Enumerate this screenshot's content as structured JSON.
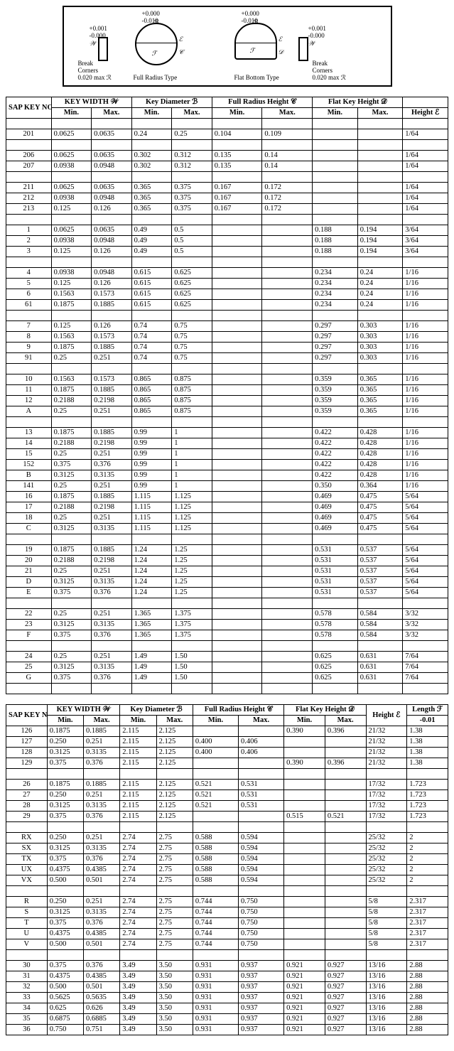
{
  "diagram": {
    "tol_w": "+0.001\n-0.000",
    "tol_b": "+0.000\n-0.010",
    "lbl_w": "𝒲",
    "lbl_b": "ℬ",
    "lbl_e": "ℰ",
    "lbl_c": "𝒞",
    "lbl_f": "ℱ",
    "lbl_d": "𝒟",
    "break": "Break\nCorners",
    "maxr": "0.020 max ℛ",
    "full_radius": "Full Radius Type",
    "flat_bottom": "Flat Bottom Type"
  },
  "headers1": {
    "sap": "SAP KEY NO.",
    "w": "KEY WIDTH 𝒲",
    "b": "Key Diameter ℬ",
    "c": "Full Radius Height 𝒞",
    "d": "Flat Key Height 𝒟",
    "e": "Height ℰ",
    "min": "Min.",
    "max": "Max."
  },
  "headers2": {
    "sap": "SAP KEY NO.",
    "w": "KEY WIDTH 𝒲",
    "b": "Key Diameter ℬ",
    "c": "Full Radius Height 𝒞",
    "d": "Flat Key Height 𝒟",
    "e": "Height ℰ",
    "f": "Length ℱ\n-0.01",
    "min": "Min.",
    "max": "Max."
  },
  "table1": [
    [],
    [
      "201",
      "0.0625",
      "0.0635",
      "0.24",
      "0.25",
      "0.104",
      "0.109",
      "",
      "",
      "1/64"
    ],
    [],
    [
      "206",
      "0.0625",
      "0.0635",
      "0.302",
      "0.312",
      "0.135",
      "0.14",
      "",
      "",
      "1/64"
    ],
    [
      "207",
      "0.0938",
      "0.0948",
      "0.302",
      "0.312",
      "0.135",
      "0.14",
      "",
      "",
      "1/64"
    ],
    [],
    [
      "211",
      "0.0625",
      "0.0635",
      "0.365",
      "0.375",
      "0.167",
      "0.172",
      "",
      "",
      "1/64"
    ],
    [
      "212",
      "0.0938",
      "0.0948",
      "0.365",
      "0.375",
      "0.167",
      "0.172",
      "",
      "",
      "1/64"
    ],
    [
      "213",
      "0.125",
      "0.126",
      "0.365",
      "0.375",
      "0.167",
      "0.172",
      "",
      "",
      "1/64"
    ],
    [],
    [
      "1",
      "0.0625",
      "0.0635",
      "0.49",
      "0.5",
      "",
      "",
      "0.188",
      "0.194",
      "3/64"
    ],
    [
      "2",
      "0.0938",
      "0.0948",
      "0.49",
      "0.5",
      "",
      "",
      "0.188",
      "0.194",
      "3/64"
    ],
    [
      "3",
      "0.125",
      "0.126",
      "0.49",
      "0.5",
      "",
      "",
      "0.188",
      "0.194",
      "3/64"
    ],
    [],
    [
      "4",
      "0.0938",
      "0.0948",
      "0.615",
      "0.625",
      "",
      "",
      "0.234",
      "0.24",
      "1/16"
    ],
    [
      "5",
      "0.125",
      "0.126",
      "0.615",
      "0.625",
      "",
      "",
      "0.234",
      "0.24",
      "1/16"
    ],
    [
      "6",
      "0.1563",
      "0.1573",
      "0.615",
      "0.625",
      "",
      "",
      "0.234",
      "0.24",
      "1/16"
    ],
    [
      "61",
      "0.1875",
      "0.1885",
      "0.615",
      "0.625",
      "",
      "",
      "0.234",
      "0.24",
      "1/16"
    ],
    [],
    [
      "7",
      "0.125",
      "0.126",
      "0.74",
      "0.75",
      "",
      "",
      "0.297",
      "0.303",
      "1/16"
    ],
    [
      "8",
      "0.1563",
      "0.1573",
      "0.74",
      "0.75",
      "",
      "",
      "0.297",
      "0.303",
      "1/16"
    ],
    [
      "9",
      "0.1875",
      "0.1885",
      "0.74",
      "0.75",
      "",
      "",
      "0.297",
      "0.303",
      "1/16"
    ],
    [
      "91",
      "0.25",
      "0.251",
      "0.74",
      "0.75",
      "",
      "",
      "0.297",
      "0.303",
      "1/16"
    ],
    [],
    [
      "10",
      "0.1563",
      "0.1573",
      "0.865",
      "0.875",
      "",
      "",
      "0.359",
      "0.365",
      "1/16"
    ],
    [
      "11",
      "0.1875",
      "0.1885",
      "0.865",
      "0.875",
      "",
      "",
      "0.359",
      "0.365",
      "1/16"
    ],
    [
      "12",
      "0.2188",
      "0.2198",
      "0.865",
      "0.875",
      "",
      "",
      "0.359",
      "0.365",
      "1/16"
    ],
    [
      "A",
      "0.25",
      "0.251",
      "0.865",
      "0.875",
      "",
      "",
      "0.359",
      "0.365",
      "1/16"
    ],
    [],
    [
      "13",
      "0.1875",
      "0.1885",
      "0.99",
      "1",
      "",
      "",
      "0.422",
      "0.428",
      "1/16"
    ],
    [
      "14",
      "0.2188",
      "0.2198",
      "0.99",
      "1",
      "",
      "",
      "0.422",
      "0.428",
      "1/16"
    ],
    [
      "15",
      "0.25",
      "0.251",
      "0.99",
      "1",
      "",
      "",
      "0.422",
      "0.428",
      "1/16"
    ],
    [
      "152",
      "0.375",
      "0.376",
      "0.99",
      "1",
      "",
      "",
      "0.422",
      "0.428",
      "1/16"
    ],
    [
      "B",
      "0.3125",
      "0.3135",
      "0.99",
      "1",
      "",
      "",
      "0.422",
      "0.428",
      "1/16"
    ],
    [
      "141",
      "0.25",
      "0.251",
      "0.99",
      "1",
      "",
      "",
      "0.350",
      "0.364",
      "1/16"
    ],
    [
      "16",
      "0.1875",
      "0.1885",
      "1.115",
      "1.125",
      "",
      "",
      "0.469",
      "0.475",
      "5/64"
    ],
    [
      "17",
      "0.2188",
      "0.2198",
      "1.115",
      "1.125",
      "",
      "",
      "0.469",
      "0.475",
      "5/64"
    ],
    [
      "18",
      "0.25",
      "0.251",
      "1.115",
      "1.125",
      "",
      "",
      "0.469",
      "0.475",
      "5/64"
    ],
    [
      "C",
      "0.3125",
      "0.3135",
      "1.115",
      "1.125",
      "",
      "",
      "0.469",
      "0.475",
      "5/64"
    ],
    [],
    [
      "19",
      "0.1875",
      "0.1885",
      "1.24",
      "1.25",
      "",
      "",
      "0.531",
      "0.537",
      "5/64"
    ],
    [
      "20",
      "0.2188",
      "0.2198",
      "1.24",
      "1.25",
      "",
      "",
      "0.531",
      "0.537",
      "5/64"
    ],
    [
      "21",
      "0.25",
      "0.251",
      "1.24",
      "1.25",
      "",
      "",
      "0.531",
      "0.537",
      "5/64"
    ],
    [
      "D",
      "0.3125",
      "0.3135",
      "1.24",
      "1.25",
      "",
      "",
      "0.531",
      "0.537",
      "5/64"
    ],
    [
      "E",
      "0.375",
      "0.376",
      "1.24",
      "1.25",
      "",
      "",
      "0.531",
      "0.537",
      "5/64"
    ],
    [],
    [
      "22",
      "0.25",
      "0.251",
      "1.365",
      "1.375",
      "",
      "",
      "0.578",
      "0.584",
      "3/32"
    ],
    [
      "23",
      "0.3125",
      "0.3135",
      "1.365",
      "1.375",
      "",
      "",
      "0.578",
      "0.584",
      "3/32"
    ],
    [
      "F",
      "0.375",
      "0.376",
      "1.365",
      "1.375",
      "",
      "",
      "0.578",
      "0.584",
      "3/32"
    ],
    [],
    [
      "24",
      "0.25",
      "0.251",
      "1.49",
      "1.50",
      "",
      "",
      "0.625",
      "0.631",
      "7/64"
    ],
    [
      "25",
      "0.3125",
      "0.3135",
      "1.49",
      "1.50",
      "",
      "",
      "0.625",
      "0.631",
      "7/64"
    ],
    [
      "G",
      "0.375",
      "0.376",
      "1.49",
      "1.50",
      "",
      "",
      "0.625",
      "0.631",
      "7/64"
    ],
    []
  ],
  "table2": [
    [
      "126",
      "0.1875",
      "0.1885",
      "2.115",
      "2.125",
      "",
      "",
      "0.390",
      "0.396",
      "21/32",
      "1.38"
    ],
    [
      "127",
      "0.250",
      "0.251",
      "2.115",
      "2.125",
      "0.400",
      "0.406",
      "",
      "",
      "21/32",
      "1.38"
    ],
    [
      "128",
      "0.3125",
      "0.3135",
      "2.115",
      "2.125",
      "0.400",
      "0.406",
      "",
      "",
      "21/32",
      "1.38"
    ],
    [
      "129",
      "0.375",
      "0.376",
      "2.115",
      "2.125",
      "",
      "",
      "0.390",
      "0.396",
      "21/32",
      "1.38"
    ],
    [],
    [
      "26",
      "0.1875",
      "0.1885",
      "2.115",
      "2.125",
      "0.521",
      "0.531",
      "",
      "",
      "17/32",
      "1.723"
    ],
    [
      "27",
      "0.250",
      "0.251",
      "2.115",
      "2.125",
      "0.521",
      "0.531",
      "",
      "",
      "17/32",
      "1.723"
    ],
    [
      "28",
      "0.3125",
      "0.3135",
      "2.115",
      "2.125",
      "0.521",
      "0.531",
      "",
      "",
      "17/32",
      "1.723"
    ],
    [
      "29",
      "0.375",
      "0.376",
      "2.115",
      "2.125",
      "",
      "",
      "0.515",
      "0.521",
      "17/32",
      "1.723"
    ],
    [],
    [
      "RX",
      "0.250",
      "0.251",
      "2.74",
      "2.75",
      "0.588",
      "0.594",
      "",
      "",
      "25/32",
      "2"
    ],
    [
      "SX",
      "0.3125",
      "0.3135",
      "2.74",
      "2.75",
      "0.588",
      "0.594",
      "",
      "",
      "25/32",
      "2"
    ],
    [
      "TX",
      "0.375",
      "0.376",
      "2.74",
      "2.75",
      "0.588",
      "0.594",
      "",
      "",
      "25/32",
      "2"
    ],
    [
      "UX",
      "0.4375",
      "0.4385",
      "2.74",
      "2.75",
      "0.588",
      "0.594",
      "",
      "",
      "25/32",
      "2"
    ],
    [
      "VX",
      "0.500",
      "0.501",
      "2.74",
      "2.75",
      "0.588",
      "0.594",
      "",
      "",
      "25/32",
      "2"
    ],
    [],
    [
      "R",
      "0.250",
      "0.251",
      "2.74",
      "2.75",
      "0.744",
      "0.750",
      "",
      "",
      "5/8",
      "2.317"
    ],
    [
      "S",
      "0.3125",
      "0.3135",
      "2.74",
      "2.75",
      "0.744",
      "0.750",
      "",
      "",
      "5/8",
      "2.317"
    ],
    [
      "T",
      "0.375",
      "0.376",
      "2.74",
      "2.75",
      "0.744",
      "0.750",
      "",
      "",
      "5/8",
      "2.317"
    ],
    [
      "U",
      "0.4375",
      "0.4385",
      "2.74",
      "2.75",
      "0.744",
      "0.750",
      "",
      "",
      "5/8",
      "2.317"
    ],
    [
      "V",
      "0.500",
      "0.501",
      "2.74",
      "2.75",
      "0.744",
      "0.750",
      "",
      "",
      "5/8",
      "2.317"
    ],
    [],
    [
      "30",
      "0.375",
      "0.376",
      "3.49",
      "3.50",
      "0.931",
      "0.937",
      "0.921",
      "0.927",
      "13/16",
      "2.88"
    ],
    [
      "31",
      "0.4375",
      "0.4385",
      "3.49",
      "3.50",
      "0.931",
      "0.937",
      "0.921",
      "0.927",
      "13/16",
      "2.88"
    ],
    [
      "32",
      "0.500",
      "0.501",
      "3.49",
      "3.50",
      "0.931",
      "0.937",
      "0.921",
      "0.927",
      "13/16",
      "2.88"
    ],
    [
      "33",
      "0.5625",
      "0.5635",
      "3.49",
      "3.50",
      "0.931",
      "0.937",
      "0.921",
      "0.927",
      "13/16",
      "2.88"
    ],
    [
      "34",
      "0.625",
      "0.626",
      "3.49",
      "3.50",
      "0.931",
      "0.937",
      "0.921",
      "0.927",
      "13/16",
      "2.88"
    ],
    [
      "35",
      "0.6875",
      "0.6885",
      "3.49",
      "3.50",
      "0.931",
      "0.937",
      "0.921",
      "0.927",
      "13/16",
      "2.88"
    ],
    [
      "36",
      "0.750",
      "0.751",
      "3.49",
      "3.50",
      "0.931",
      "0.937",
      "0.921",
      "0.927",
      "13/16",
      "2.88"
    ]
  ]
}
